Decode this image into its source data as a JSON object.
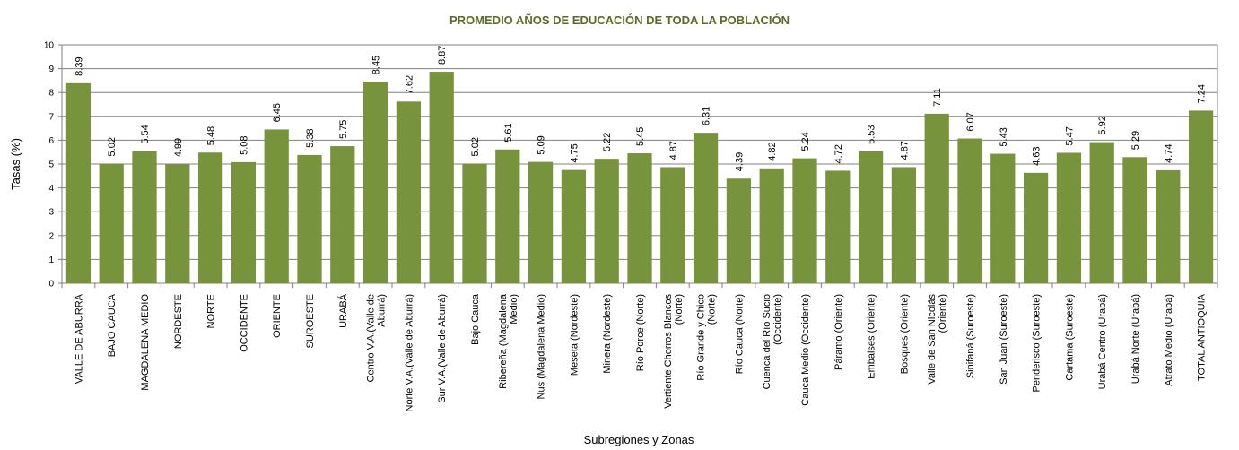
{
  "chart_data": {
    "type": "bar",
    "title": "PROMEDIO AÑOS DE EDUCACIÓN DE TODA LA POBLACIÓN",
    "xlabel": "Subregiones y Zonas",
    "ylabel": "Tasas (%)",
    "ylim": [
      0,
      10
    ],
    "yticks": [
      "0",
      "1",
      "2",
      "3",
      "4",
      "5",
      "6",
      "7",
      "8",
      "9",
      "10"
    ],
    "grid": true,
    "bar_color": "#77933c",
    "categories": [
      [
        "VALLE DE ABURRÁ"
      ],
      [
        "BAJO CAUCA"
      ],
      [
        "MAGDALENA MEDIO"
      ],
      [
        "NORDESTE"
      ],
      [
        "NORTE"
      ],
      [
        "OCCIDENTE"
      ],
      [
        "ORIENTE"
      ],
      [
        "SUROESTE"
      ],
      [
        "URABÁ"
      ],
      [
        "Centro V.A.(Valle de",
        "Aburrá)"
      ],
      [
        "Norte V.A.(Valle de Aburrá)"
      ],
      [
        "Sur V.A.(Valle de Aburrá)"
      ],
      [
        "Bajo Cauca"
      ],
      [
        "Ribereña (Magdalena",
        "Medio)"
      ],
      [
        "Nus (Magdalena Medio)"
      ],
      [
        "Meseta (Nordeste)"
      ],
      [
        "Minera (Nordeste)"
      ],
      [
        "Río Porce (Norte)"
      ],
      [
        "Vertiente Chorros Blancos",
        "(Norte)"
      ],
      [
        "Río Grande y Chico",
        "(Norte)"
      ],
      [
        "Río Cauca (Norte)"
      ],
      [
        "Cuenca del Río Sucio",
        "(Occidente)"
      ],
      [
        "Cauca Medio (Occidente)"
      ],
      [
        "Páramo (Oriente)"
      ],
      [
        "Embalses (Oriente)"
      ],
      [
        "Bosques (Oriente)"
      ],
      [
        "Valle de San Nicolás",
        "(Oriente)"
      ],
      [
        "Sinifaná (Suroeste)"
      ],
      [
        "San Juan (Suroeste)"
      ],
      [
        "Penderisco (Suroeste)"
      ],
      [
        "Cartama (Suroeste)"
      ],
      [
        "Urabá Centro (Urabá)"
      ],
      [
        "Urabá Norte (Urabá)"
      ],
      [
        "Atrato Medio (Urabá)"
      ],
      [
        "TOTAL ANTIOQUIA"
      ]
    ],
    "values": [
      8.39,
      5.02,
      5.54,
      4.99,
      5.48,
      5.08,
      6.45,
      5.38,
      5.75,
      8.45,
      7.62,
      8.87,
      5.02,
      5.61,
      5.09,
      4.75,
      5.22,
      5.45,
      4.87,
      6.31,
      4.39,
      4.82,
      5.24,
      4.72,
      5.53,
      4.87,
      7.11,
      6.07,
      5.43,
      4.63,
      5.47,
      5.92,
      5.29,
      4.74,
      7.24
    ],
    "data_labels": [
      "8.39",
      "5.02",
      "5.54",
      "4.99",
      "5.48",
      "5.08",
      "6.45",
      "5.38",
      "5.75",
      "8.45",
      "7.62",
      "8.87",
      "5.02",
      "5.61",
      "5.09",
      "4.75",
      "5.22",
      "5.45",
      "4.87",
      "6.31",
      "4.39",
      "4.82",
      "5.24",
      "4.72",
      "5.53",
      "4.87",
      "7.11",
      "6.07",
      "5.43",
      "4.63",
      "5.47",
      "5.92",
      "5.29",
      "4.74",
      "7.24"
    ]
  }
}
